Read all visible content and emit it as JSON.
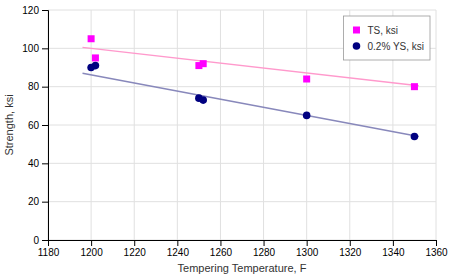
{
  "chart_data": {
    "type": "scatter",
    "xlabel": "Tempering Temperature, F",
    "ylabel": "Strength, ksi",
    "xlim": [
      1180,
      1360
    ],
    "ylim": [
      0,
      120
    ],
    "xticks": [
      1180,
      1200,
      1220,
      1240,
      1260,
      1280,
      1300,
      1320,
      1340,
      1360
    ],
    "yticks": [
      0,
      20,
      40,
      60,
      80,
      100,
      120
    ],
    "grid": true,
    "legend": "upper right",
    "series": [
      {
        "type": "line",
        "color": "#FF99CC",
        "x": [
          1196,
          1352
        ],
        "values": [
          100.5,
          80.5
        ]
      },
      {
        "type": "line",
        "color": "#8888BB",
        "x": [
          1196,
          1352
        ],
        "values": [
          87,
          54
        ]
      },
      {
        "name": "TS, ksi",
        "type": "scatter",
        "marker": "square",
        "color": "#FF00FF",
        "x": [
          1200,
          1202,
          1250,
          1252,
          1300,
          1350
        ],
        "values": [
          105,
          95,
          91,
          92,
          84,
          80
        ]
      },
      {
        "name": "0.2% YS, ksi",
        "type": "scatter",
        "marker": "circle",
        "color": "#000080",
        "x": [
          1200,
          1202,
          1250,
          1252,
          1300,
          1350
        ],
        "values": [
          90,
          91,
          74,
          73,
          65,
          54
        ]
      }
    ]
  }
}
